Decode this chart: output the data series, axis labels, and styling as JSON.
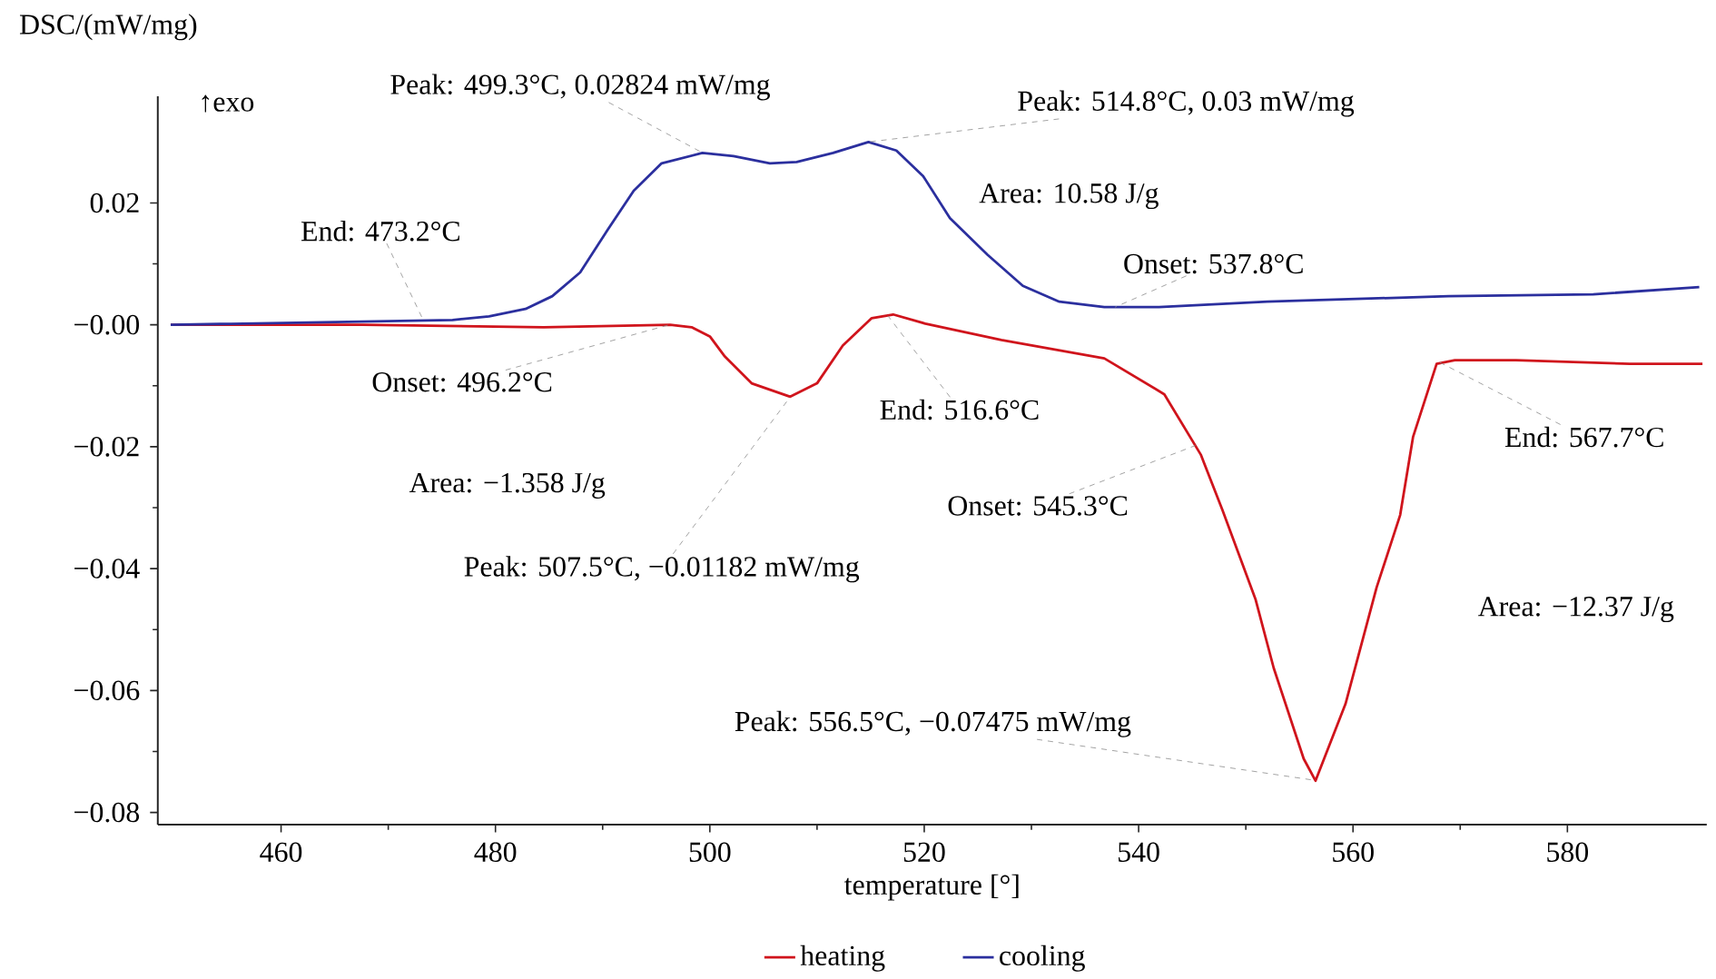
{
  "chart_data": {
    "type": "line",
    "ylabel": "DSC/(mW/mg)",
    "xlabel": "temperature [°]",
    "xlim": [
      448.5,
      593
    ],
    "ylim": [
      -0.082,
      0.0375
    ],
    "xticks": [
      460,
      480,
      500,
      520,
      540,
      560,
      580
    ],
    "yticks": [
      {
        "value": -0.08,
        "label": "−0.08"
      },
      {
        "value": -0.06,
        "label": "−0.06"
      },
      {
        "value": -0.04,
        "label": "−0.04"
      },
      {
        "value": -0.02,
        "label": "−0.02"
      },
      {
        "value": 0,
        "label": "−0.00"
      },
      {
        "value": 0.02,
        "label": "0.02"
      }
    ],
    "legend": "bottom",
    "marker": "none",
    "series": [
      {
        "name": "heating",
        "color": "#d0141c",
        "x": [
          449.7,
          467.6,
          484.5,
          496.3,
          498.3,
          500.0,
          501.4,
          503.9,
          507.5,
          510.0,
          512.4,
          515.1,
          517.1,
          520.1,
          527.2,
          536.8,
          542.4,
          545.8,
          547.8,
          550.9,
          552.6,
          555.4,
          556.5,
          559.3,
          562.2,
          564.4,
          565.6,
          567.8,
          569.5,
          575.2,
          585.8,
          592.6
        ],
        "values": [
          0,
          0,
          -0.0004,
          0,
          -0.0004,
          -0.0019,
          -0.0052,
          -0.0096,
          -0.0118,
          -0.0096,
          -0.0034,
          0.0011,
          0.0017,
          0.0002,
          -0.0025,
          -0.0055,
          -0.0114,
          -0.0213,
          -0.0303,
          -0.045,
          -0.0563,
          -0.0712,
          -0.0748,
          -0.0622,
          -0.0431,
          -0.0312,
          -0.0184,
          -0.0064,
          -0.0058,
          -0.0058,
          -0.0064,
          -0.0064
        ]
      },
      {
        "name": "cooling",
        "color": "#2b2f9e",
        "x": [
          449.7,
          476.0,
          479.4,
          482.8,
          485.3,
          487.9,
          490.4,
          492.9,
          495.5,
          499.3,
          502.2,
          505.6,
          508.1,
          511.5,
          514.8,
          517.4,
          519.9,
          522.4,
          525.9,
          529.2,
          532.6,
          536.8,
          541.9,
          552.0,
          568.9,
          582.4,
          592.3
        ],
        "values": [
          0,
          0.0008,
          0.0014,
          0.0026,
          0.0047,
          0.0086,
          0.0154,
          0.022,
          0.0265,
          0.0282,
          0.0277,
          0.0265,
          0.0267,
          0.0282,
          0.03,
          0.0286,
          0.0244,
          0.0175,
          0.0115,
          0.0064,
          0.0038,
          0.0029,
          0.0029,
          0.0038,
          0.0047,
          0.005,
          0.0062
        ]
      }
    ],
    "annotations": [
      "↑exo",
      {
        "text": "Peak: 499.3°C, 0.02824 mW/mg",
        "x": 499.3,
        "y": 0.02824
      },
      {
        "text": "Peak: 514.8°C, 0.03 mW/mg",
        "x": 514.8,
        "y": 0.03
      },
      "Area: 10.58 J/g",
      {
        "text": "Onset: 537.8°C",
        "x": 537.8,
        "y": 0.0029
      },
      {
        "text": "End: 473.2°C",
        "x": 473.2,
        "y": 0.001
      },
      {
        "text": "Onset: 496.2°C",
        "x": 496.2,
        "y": 0
      },
      {
        "text": "End: 516.6°C",
        "x": 516.6,
        "y": 0.0015
      },
      "Area: −1.358 J/g",
      {
        "text": "Peak: 507.5°C, −0.01182 mW/mg",
        "x": 507.5,
        "y": -0.01182
      },
      {
        "text": "Onset: 545.3°C",
        "x": 545.3,
        "y": -0.0198
      },
      {
        "text": "End: 567.7°C",
        "x": 567.7,
        "y": -0.0058
      },
      "Area: −12.37 J/g",
      {
        "text": "Peak: 556.5°C, −0.07475 mW/mg",
        "x": 556.5,
        "y": -0.07475
      }
    ]
  }
}
